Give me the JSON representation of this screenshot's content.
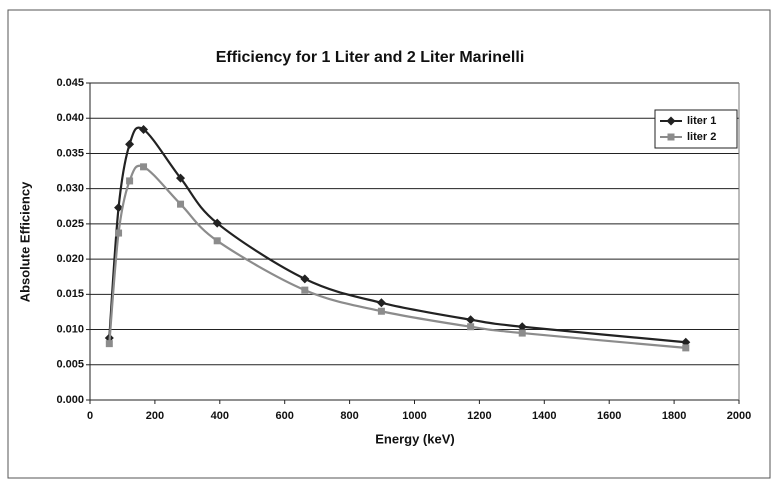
{
  "chart_data": {
    "type": "line",
    "title": "Efficiency for 1 Liter and 2 Liter Marinelli",
    "x_label": "Energy (keV)",
    "y_label": "Absolute Efficiency",
    "x": [
      59.5,
      88,
      122,
      165,
      279,
      392,
      662,
      898,
      1173,
      1332,
      1836
    ],
    "series": [
      {
        "name": "liter 1",
        "color": "#222222",
        "marker": "diamond",
        "values": [
          0.0088,
          0.0273,
          0.0363,
          0.0384,
          0.0315,
          0.0251,
          0.0172,
          0.0138,
          0.0114,
          0.0104,
          0.0082
        ]
      },
      {
        "name": "liter 2",
        "color": "#8c8c8c",
        "marker": "square",
        "values": [
          0.008,
          0.0237,
          0.0311,
          0.0331,
          0.0278,
          0.0226,
          0.0156,
          0.0126,
          0.0104,
          0.0095,
          0.0074
        ]
      }
    ],
    "xlim": [
      0,
      2000
    ],
    "xticks": [
      0,
      200,
      400,
      600,
      800,
      1000,
      1200,
      1400,
      1600,
      1800,
      2000
    ],
    "ylim": [
      0,
      0.045
    ],
    "yticks": [
      {
        "value": 0,
        "label": "0.000"
      },
      {
        "value": 0.005,
        "label": "0.005"
      },
      {
        "value": 0.01,
        "label": "0.010"
      },
      {
        "value": 0.015,
        "label": "0.015"
      },
      {
        "value": 0.02,
        "label": "0.020"
      },
      {
        "value": 0.025,
        "label": "0.025"
      },
      {
        "value": 0.03,
        "label": "0.030"
      },
      {
        "value": 0.035,
        "label": "0.035"
      },
      {
        "value": 0.04,
        "label": "0.040"
      },
      {
        "value": 0.045,
        "label": "0.045"
      }
    ],
    "grid": true,
    "legend": "top-right",
    "smooth": true
  }
}
